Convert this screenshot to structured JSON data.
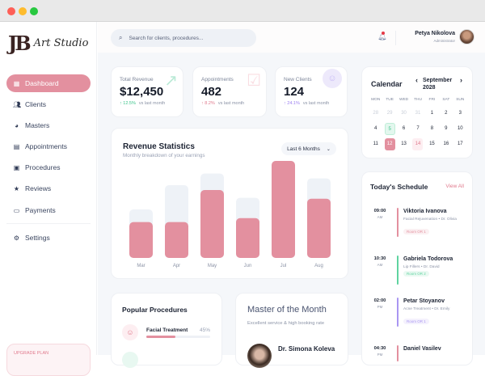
{
  "window": {
    "controls": [
      "close",
      "minimize",
      "maximize"
    ],
    "colors": [
      "#fe5f57",
      "#febc2e",
      "#28c840"
    ]
  },
  "brand": {
    "mark": "JB",
    "name": "Art Studio"
  },
  "sidebar": {
    "items": [
      {
        "label": "Dashboard",
        "icon": "grid-icon",
        "active": true
      },
      {
        "label": "Clients",
        "icon": "users-icon"
      },
      {
        "label": "Masters",
        "icon": "user-circle-icon"
      },
      {
        "label": "Appointments",
        "icon": "calendar-icon"
      },
      {
        "label": "Procedures",
        "icon": "briefcase-icon"
      },
      {
        "label": "Reviews",
        "icon": "star-icon"
      },
      {
        "label": "Payments",
        "icon": "credit-card-icon"
      }
    ],
    "settings": "Settings",
    "upgrade": "UPGRADE PLAN"
  },
  "header": {
    "search_placeholder": "Search for clients, procedures...",
    "user_name": "Petya Nikolova",
    "user_role": "Administrator"
  },
  "stats": [
    {
      "label": "Total Revenue",
      "value": "$12,450",
      "delta": "↑ 12.5%",
      "vs": "vs last month",
      "color": "#3cc48b"
    },
    {
      "label": "Appointments",
      "value": "482",
      "delta": "↑ 8.2%",
      "vs": "vs last month",
      "color": "#e07a8d"
    },
    {
      "label": "New Clients",
      "value": "124",
      "delta": "↑ 24.1%",
      "vs": "vs last month",
      "color": "#9b7ff0"
    }
  ],
  "revenue": {
    "title": "Revenue Statistics",
    "subtitle": "Monthly breakdown of your earnings",
    "range": "Last 6 Months"
  },
  "chart_data": {
    "type": "bar",
    "categories": [
      "Mar",
      "Apr",
      "May",
      "Jun",
      "Jul",
      "Aug"
    ],
    "series": [
      {
        "values": [
          37,
          37,
          70,
          41,
          100,
          61
        ],
        "color": "#e3909f"
      },
      {
        "values": [
          50,
          75,
          87,
          62,
          100,
          82
        ],
        "color": "#eef2f7"
      }
    ],
    "ylim": [
      0,
      100
    ],
    "grid": false
  },
  "calendar": {
    "title": "Calendar",
    "month": "September",
    "year": "2028",
    "weekdays": [
      "MON",
      "TUE",
      "WED",
      "THU",
      "FRI",
      "SAT",
      "SUN"
    ],
    "days": [
      [
        "28",
        "muted"
      ],
      [
        "29",
        "muted"
      ],
      [
        "30",
        "muted"
      ],
      [
        "31",
        "muted"
      ],
      [
        "1",
        ""
      ],
      [
        "2",
        ""
      ],
      [
        "3",
        ""
      ],
      [
        "4",
        ""
      ],
      [
        "5",
        "event"
      ],
      [
        "6",
        ""
      ],
      [
        "7",
        ""
      ],
      [
        "8",
        ""
      ],
      [
        "9",
        ""
      ],
      [
        "10",
        ""
      ],
      [
        "11",
        ""
      ],
      [
        "12",
        "selected"
      ],
      [
        "13",
        ""
      ],
      [
        "14",
        "today"
      ],
      [
        "15",
        ""
      ],
      [
        "16",
        ""
      ],
      [
        "17",
        ""
      ]
    ]
  },
  "schedule": {
    "title": "Today's Schedule",
    "view_all": "View All",
    "items": [
      {
        "time": "09:00",
        "ampm": "AM",
        "name": "Viktoria Ivanova",
        "detail": "Facial Rejuvenation • Dr. Olivia",
        "room": "Room OR 1",
        "color": "#e3909f"
      },
      {
        "time": "10:30",
        "ampm": "AM",
        "name": "Gabriela Todorova",
        "detail": "Lip Fillers • Dr. David",
        "room": "Room OR 2",
        "color": "#5fd3a0"
      },
      {
        "time": "02:00",
        "ampm": "PM",
        "name": "Petar Stoyanov",
        "detail": "Acne Treatment • Dr. Emily",
        "room": "Room OR 1",
        "color": "#a996f2"
      },
      {
        "time": "04:30",
        "ampm": "PM",
        "name": "Daniel Vasilev",
        "color": "#e3909f"
      }
    ]
  },
  "procedures": {
    "title": "Popular Procedures",
    "items": [
      {
        "name": "Facial Treatment",
        "percent": 45
      }
    ]
  },
  "master": {
    "title": "Master of the Month",
    "subtitle": "Excellent service & high booking rate",
    "name": "Dr. Simona Koleva"
  }
}
